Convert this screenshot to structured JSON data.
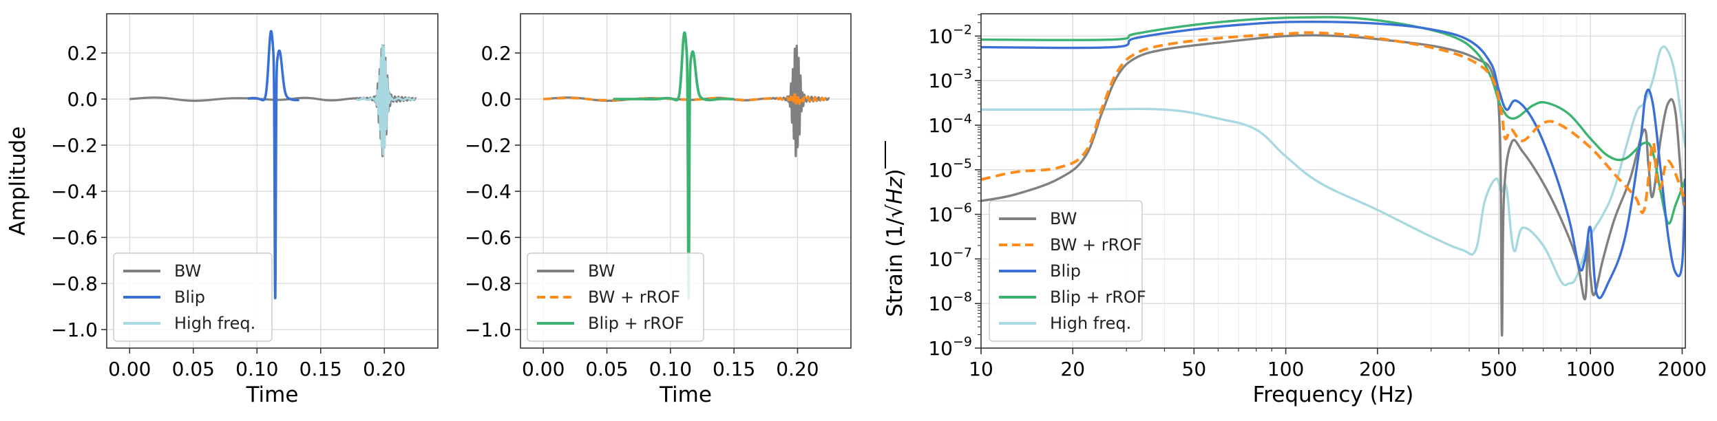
{
  "chart_data": [
    {
      "type": "line",
      "id": "left",
      "xlabel": "Time",
      "ylabel": "Amplitude",
      "xlim": [
        -0.018,
        0.242
      ],
      "ylim": [
        -1.08,
        0.37
      ],
      "xticks": [
        0.0,
        0.05,
        0.1,
        0.15,
        0.2
      ],
      "xtick_labels": [
        "0.00",
        "0.05",
        "0.10",
        "0.15",
        "0.20"
      ],
      "yticks": [
        0.2,
        0.0,
        -0.2,
        -0.4,
        -0.6,
        -0.8,
        -1.0
      ],
      "ytick_labels": [
        "0.2",
        "0.0",
        "−0.2",
        "−0.4",
        "−0.6",
        "−0.8",
        "−1.0"
      ],
      "grid": true,
      "legend_position": "bottom-left",
      "series": [
        {
          "name": "BW",
          "color": "#808080",
          "kind": "bw"
        },
        {
          "name": "Blip",
          "color": "#3a6fd6",
          "kind": "blip"
        },
        {
          "name": "High freq.",
          "color": "#a8d8e0",
          "kind": "hf"
        }
      ]
    },
    {
      "type": "line",
      "id": "mid",
      "xlabel": "Time",
      "ylabel": "",
      "xlim": [
        -0.018,
        0.242
      ],
      "ylim": [
        -1.08,
        0.37
      ],
      "xticks": [
        0.0,
        0.05,
        0.1,
        0.15,
        0.2
      ],
      "xtick_labels": [
        "0.00",
        "0.05",
        "0.10",
        "0.15",
        "0.20"
      ],
      "yticks": [
        0.2,
        0.0,
        -0.2,
        -0.4,
        -0.6,
        -0.8,
        -1.0
      ],
      "ytick_labels": [
        "0.2",
        "0.0",
        "−0.2",
        "−0.4",
        "−0.6",
        "−0.8",
        "−1.0"
      ],
      "grid": true,
      "legend_position": "bottom-left",
      "series": [
        {
          "name": "BW",
          "color": "#808080",
          "kind": "bw"
        },
        {
          "name": "BW + rROF",
          "color": "#ff8c1a",
          "kind": "bwrof",
          "dashed": true
        },
        {
          "name": "Blip + rROF",
          "color": "#3cb371",
          "kind": "bliprof"
        }
      ]
    },
    {
      "type": "line",
      "id": "right",
      "scale": "loglog",
      "xlabel": "Frequency (Hz)",
      "ylabel": "Strain (1/√Hz)",
      "ylabel_prefix": "Strain (1/",
      "ylabel_radicand": "Hz",
      "ylabel_suffix": ")",
      "xlim": [
        10,
        2048
      ],
      "ylim_exp": [
        -9,
        -1.5
      ],
      "xticks": [
        10,
        20,
        50,
        100,
        200,
        500,
        1000,
        2000
      ],
      "xtick_labels": [
        "10",
        "20",
        "50",
        "100",
        "200",
        "500",
        "1000",
        "2000"
      ],
      "yticks_exp": [
        -9,
        -8,
        -7,
        -6,
        -5,
        -4,
        -3,
        -2
      ],
      "ytick_mantissa": "10",
      "grid": true,
      "legend_position": "bottom-left",
      "series": [
        {
          "name": "BW",
          "color": "#808080",
          "points": [
            [
              10,
              -5.7
            ],
            [
              13,
              -5.55
            ],
            [
              18,
              -5.2
            ],
            [
              22,
              -4.7
            ],
            [
              25,
              -3.7
            ],
            [
              28,
              -2.9
            ],
            [
              32,
              -2.5
            ],
            [
              40,
              -2.3
            ],
            [
              60,
              -2.15
            ],
            [
              100,
              -2.0
            ],
            [
              150,
              -2.0
            ],
            [
              220,
              -2.1
            ],
            [
              320,
              -2.25
            ],
            [
              420,
              -2.5
            ],
            [
              480,
              -2.9
            ],
            [
              505,
              -4.3
            ],
            [
              512,
              -8.7
            ],
            [
              520,
              -5.6
            ],
            [
              550,
              -4.4
            ],
            [
              600,
              -4.6
            ],
            [
              700,
              -5.3
            ],
            [
              800,
              -6.1
            ],
            [
              900,
              -7.0
            ],
            [
              960,
              -7.9
            ],
            [
              980,
              -6.6
            ],
            [
              1000,
              -7.4
            ],
            [
              1030,
              -7.8
            ],
            [
              1100,
              -7.0
            ],
            [
              1200,
              -6.1
            ],
            [
              1350,
              -5.2
            ],
            [
              1500,
              -4.1
            ],
            [
              1550,
              -4.9
            ],
            [
              1600,
              -5.6
            ],
            [
              1700,
              -4.3
            ],
            [
              1800,
              -3.5
            ],
            [
              1900,
              -3.7
            ],
            [
              2000,
              -5.5
            ],
            [
              2048,
              -5.9
            ]
          ]
        },
        {
          "name": "BW + rROF",
          "color": "#ff8c1a",
          "dashed": true,
          "points": [
            [
              10,
              -5.22
            ],
            [
              13,
              -5.05
            ],
            [
              18,
              -4.95
            ],
            [
              22,
              -4.6
            ],
            [
              25,
              -3.6
            ],
            [
              28,
              -2.8
            ],
            [
              32,
              -2.4
            ],
            [
              40,
              -2.2
            ],
            [
              60,
              -2.05
            ],
            [
              100,
              -1.95
            ],
            [
              130,
              -1.93
            ],
            [
              200,
              -2.05
            ],
            [
              320,
              -2.3
            ],
            [
              420,
              -2.6
            ],
            [
              480,
              -3.0
            ],
            [
              510,
              -3.7
            ],
            [
              525,
              -4.3
            ],
            [
              550,
              -4.1
            ],
            [
              600,
              -4.35
            ],
            [
              700,
              -3.95
            ],
            [
              800,
              -4.0
            ],
            [
              1000,
              -4.5
            ],
            [
              1200,
              -5.1
            ],
            [
              1400,
              -5.6
            ],
            [
              1500,
              -5.9
            ],
            [
              1600,
              -4.4
            ],
            [
              1650,
              -5.2
            ],
            [
              1700,
              -5.4
            ],
            [
              1800,
              -4.8
            ],
            [
              2000,
              -5.5
            ],
            [
              2048,
              -5.8
            ]
          ]
        },
        {
          "name": "Blip",
          "color": "#3a6fd6",
          "points": [
            [
              10,
              -2.25
            ],
            [
              27,
              -2.25
            ],
            [
              32,
              -2.05
            ],
            [
              50,
              -1.85
            ],
            [
              80,
              -1.72
            ],
            [
              120,
              -1.68
            ],
            [
              200,
              -1.72
            ],
            [
              300,
              -1.85
            ],
            [
              400,
              -2.1
            ],
            [
              470,
              -2.6
            ],
            [
              500,
              -3.2
            ],
            [
              530,
              -3.65
            ],
            [
              570,
              -3.45
            ],
            [
              650,
              -3.9
            ],
            [
              750,
              -4.9
            ],
            [
              850,
              -6.1
            ],
            [
              920,
              -7.2
            ],
            [
              960,
              -7.0
            ],
            [
              1000,
              -6.3
            ],
            [
              1050,
              -7.8
            ],
            [
              1150,
              -7.5
            ],
            [
              1300,
              -6.5
            ],
            [
              1450,
              -4.5
            ],
            [
              1520,
              -3.3
            ],
            [
              1600,
              -3.5
            ],
            [
              1700,
              -5.0
            ],
            [
              1800,
              -6.5
            ],
            [
              1900,
              -7.3
            ],
            [
              2000,
              -7.1
            ],
            [
              2048,
              -5.2
            ]
          ]
        },
        {
          "name": "Blip + rROF",
          "color": "#3cb371",
          "points": [
            [
              10,
              -2.08
            ],
            [
              27,
              -2.08
            ],
            [
              32,
              -1.95
            ],
            [
              50,
              -1.75
            ],
            [
              80,
              -1.62
            ],
            [
              120,
              -1.58
            ],
            [
              170,
              -1.6
            ],
            [
              250,
              -1.75
            ],
            [
              350,
              -2.0
            ],
            [
              420,
              -2.35
            ],
            [
              470,
              -2.9
            ],
            [
              510,
              -3.6
            ],
            [
              560,
              -3.85
            ],
            [
              650,
              -3.55
            ],
            [
              720,
              -3.5
            ],
            [
              850,
              -3.75
            ],
            [
              1000,
              -4.3
            ],
            [
              1150,
              -4.7
            ],
            [
              1300,
              -4.75
            ],
            [
              1500,
              -4.4
            ],
            [
              1600,
              -4.6
            ],
            [
              1700,
              -5.5
            ],
            [
              1800,
              -6.2
            ],
            [
              1900,
              -5.8
            ],
            [
              2000,
              -5.4
            ],
            [
              2048,
              -5.2
            ]
          ]
        },
        {
          "name": "High freq.",
          "color": "#a8d8e0",
          "points": [
            [
              10,
              -3.65
            ],
            [
              20,
              -3.65
            ],
            [
              40,
              -3.65
            ],
            [
              60,
              -3.85
            ],
            [
              80,
              -4.1
            ],
            [
              100,
              -4.7
            ],
            [
              130,
              -5.3
            ],
            [
              200,
              -5.9
            ],
            [
              300,
              -6.5
            ],
            [
              380,
              -6.8
            ],
            [
              420,
              -6.8
            ],
            [
              450,
              -5.7
            ],
            [
              490,
              -5.2
            ],
            [
              510,
              -5.5
            ],
            [
              530,
              -5.4
            ],
            [
              560,
              -6.8
            ],
            [
              600,
              -6.3
            ],
            [
              700,
              -6.7
            ],
            [
              800,
              -7.5
            ],
            [
              850,
              -7.55
            ],
            [
              900,
              -7.4
            ],
            [
              1000,
              -6.5
            ],
            [
              1100,
              -6.0
            ],
            [
              1200,
              -5.4
            ],
            [
              1400,
              -3.8
            ],
            [
              1500,
              -3.5
            ],
            [
              1600,
              -3.0
            ],
            [
              1700,
              -2.3
            ],
            [
              1800,
              -2.35
            ],
            [
              1900,
              -2.9
            ],
            [
              2000,
              -4.0
            ],
            [
              2048,
              -4.5
            ]
          ]
        }
      ]
    }
  ]
}
